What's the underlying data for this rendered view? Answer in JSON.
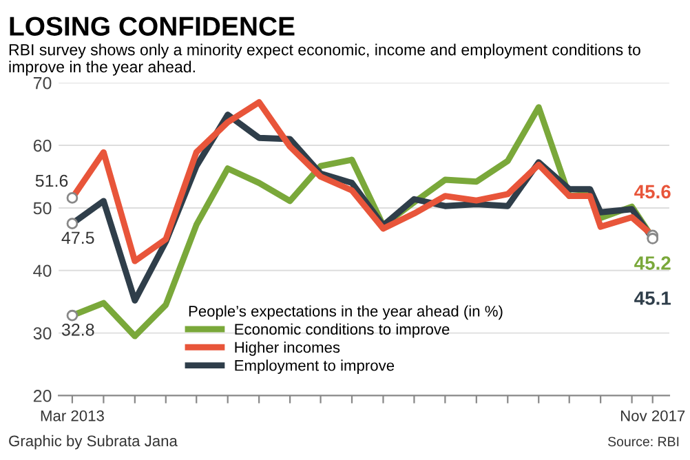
{
  "chart_data": {
    "type": "line",
    "title": "LOSING CONFIDENCE",
    "subtitle": "RBI survey shows only a minority expect economic, income and employment conditions to improve in the year ahead.",
    "legend_title": "People’s expectations in the year ahead (in %)",
    "x": [
      "2013-03",
      "2013-06",
      "2013-09",
      "2013-12",
      "2014-03",
      "2014-06",
      "2014-09",
      "2014-12",
      "2015-03",
      "2015-06",
      "2015-09",
      "2015-12",
      "2016-03",
      "2016-06",
      "2016-09",
      "2016-12",
      "2017-03",
      "2017-05",
      "2017-06",
      "2017-09",
      "2017-11"
    ],
    "series": [
      {
        "name": "Economic conditions to improve",
        "color": "#7aa83a",
        "values": [
          32.8,
          34.8,
          29.5,
          34.5,
          47.3,
          56.3,
          54,
          51.1,
          56.7,
          57.7,
          47.2,
          50.9,
          54.5,
          54.2,
          57.5,
          66.1,
          51.9,
          52.2,
          48.4,
          50.2,
          45.2
        ]
      },
      {
        "name": "Higher incomes",
        "color": "#e8553a",
        "values": [
          51.6,
          58.9,
          41.5,
          45,
          58.9,
          63.7,
          66.9,
          59.8,
          55,
          52.8,
          46.7,
          49.1,
          51.9,
          51.2,
          52.2,
          56.9,
          51.9,
          51.9,
          47,
          48.5,
          45.6
        ]
      },
      {
        "name": "Employment to improve",
        "color": "#2f3e4a",
        "values": [
          47.5,
          51.1,
          35.2,
          44.6,
          56.7,
          64.9,
          61.2,
          61,
          55.5,
          54,
          47.2,
          51.4,
          50.3,
          50.6,
          50.3,
          57.3,
          53,
          53,
          49.3,
          49.8,
          45.1
        ]
      }
    ],
    "xlim": [
      "2013-01-20",
      "2017-12-20"
    ],
    "xticks": [
      {
        "value": "2013-03",
        "label": "Mar 2013"
      },
      {
        "value": "2013-06",
        "label": null
      },
      {
        "value": "2013-09",
        "label": null
      },
      {
        "value": "2013-12",
        "label": null
      },
      {
        "value": "2014-03",
        "label": null
      },
      {
        "value": "2014-06",
        "label": null
      },
      {
        "value": "2014-09",
        "label": null
      },
      {
        "value": "2014-12",
        "label": null
      },
      {
        "value": "2015-03",
        "label": null
      },
      {
        "value": "2015-06",
        "label": null
      },
      {
        "value": "2015-09",
        "label": null
      },
      {
        "value": "2015-12",
        "label": null
      },
      {
        "value": "2016-03",
        "label": null
      },
      {
        "value": "2016-06",
        "label": null
      },
      {
        "value": "2016-09",
        "label": null
      },
      {
        "value": "2016-12",
        "label": null
      },
      {
        "value": "2017-03",
        "label": null
      },
      {
        "value": "2017-06",
        "label": null
      },
      {
        "value": "2017-09",
        "label": null
      },
      {
        "value": "2017-11",
        "label": "Nov 2017"
      }
    ],
    "ylim": [
      20,
      70
    ],
    "yticks": [
      20,
      30,
      40,
      50,
      60,
      70
    ],
    "grid": "y",
    "legend": "bottom",
    "annotations": [
      {
        "text": "51.6",
        "x": "2013-03",
        "y": 51.6
      },
      {
        "text": "47.5",
        "x": "2013-03",
        "y": 47.5
      },
      {
        "text": "32.8",
        "x": "2013-03",
        "y": 32.8
      },
      {
        "text": "45.6",
        "x": "2017-11",
        "y": 45.6
      },
      {
        "text": "45.1",
        "x": "2017-11",
        "y": 45.1
      },
      {
        "text": "45.2",
        "x": "2017-11",
        "y": 45.2
      },
      "Graphic by Subrata Jana",
      "Source: RBI"
    ]
  }
}
